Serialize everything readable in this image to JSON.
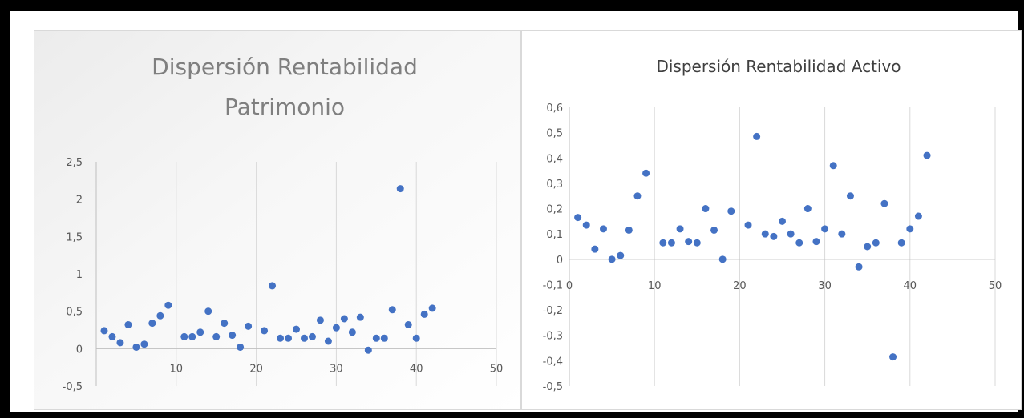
{
  "chart_data": [
    {
      "type": "scatter",
      "title_lines": [
        "Dispersión Rentabilidad",
        "Patrimonio"
      ],
      "xlabel": "",
      "ylabel": "",
      "xlim": [
        0,
        50
      ],
      "ylim": [
        -0.5,
        2.5
      ],
      "x_ticks": [
        "10",
        "20",
        "30",
        "40",
        "50"
      ],
      "y_ticks": [
        "2,5",
        "2",
        "1,5",
        "1",
        "0,5",
        "0",
        "-0,5"
      ],
      "grid": "vertical",
      "color": "#4472c4",
      "x": [
        1,
        2,
        3,
        4,
        5,
        6,
        7,
        8,
        9,
        11,
        12,
        13,
        14,
        15,
        16,
        17,
        18,
        19,
        21,
        22,
        23,
        24,
        25,
        26,
        27,
        28,
        29,
        30,
        31,
        32,
        33,
        34,
        35,
        36,
        37,
        38,
        39,
        40,
        41,
        42
      ],
      "y": [
        0.24,
        0.16,
        0.08,
        0.32,
        0.02,
        0.06,
        0.34,
        0.44,
        0.58,
        0.16,
        0.16,
        0.22,
        0.5,
        0.16,
        0.34,
        0.18,
        0.02,
        0.3,
        0.24,
        0.84,
        0.14,
        0.14,
        0.26,
        0.14,
        0.16,
        0.38,
        0.1,
        0.28,
        0.4,
        0.22,
        0.42,
        -0.02,
        0.14,
        0.14,
        0.52,
        2.14,
        0.32,
        0.14,
        0.46,
        0.54
      ]
    },
    {
      "type": "scatter",
      "title_lines": [
        "Dispersión Rentabilidad Activo"
      ],
      "xlabel": "",
      "ylabel": "",
      "xlim": [
        0,
        50
      ],
      "ylim": [
        -0.5,
        0.6
      ],
      "x_ticks": [
        "0",
        "10",
        "20",
        "30",
        "40",
        "50"
      ],
      "y_ticks": [
        "0,6",
        "0,5",
        "0,4",
        "0,3",
        "0,2",
        "0,1",
        "0",
        "-0,1",
        "-0,2",
        "-0,3",
        "-0,4",
        "-0,5"
      ],
      "grid": "vertical",
      "color": "#4472c4",
      "x": [
        1,
        2,
        3,
        4,
        5,
        6,
        7,
        8,
        9,
        11,
        12,
        13,
        14,
        15,
        16,
        17,
        18,
        19,
        21,
        22,
        23,
        24,
        25,
        26,
        27,
        28,
        29,
        30,
        31,
        32,
        33,
        34,
        35,
        36,
        37,
        38,
        39,
        40,
        41,
        42
      ],
      "y": [
        0.165,
        0.135,
        0.04,
        0.12,
        0.0,
        0.015,
        0.115,
        0.25,
        0.34,
        0.065,
        0.065,
        0.12,
        0.07,
        0.065,
        0.2,
        0.115,
        0.0,
        0.19,
        0.135,
        0.485,
        0.1,
        0.09,
        0.15,
        0.1,
        0.065,
        0.2,
        0.07,
        0.12,
        0.37,
        0.1,
        0.25,
        -0.03,
        0.05,
        0.065,
        0.22,
        -0.385,
        0.065,
        0.12,
        0.17,
        0.41
      ]
    }
  ]
}
